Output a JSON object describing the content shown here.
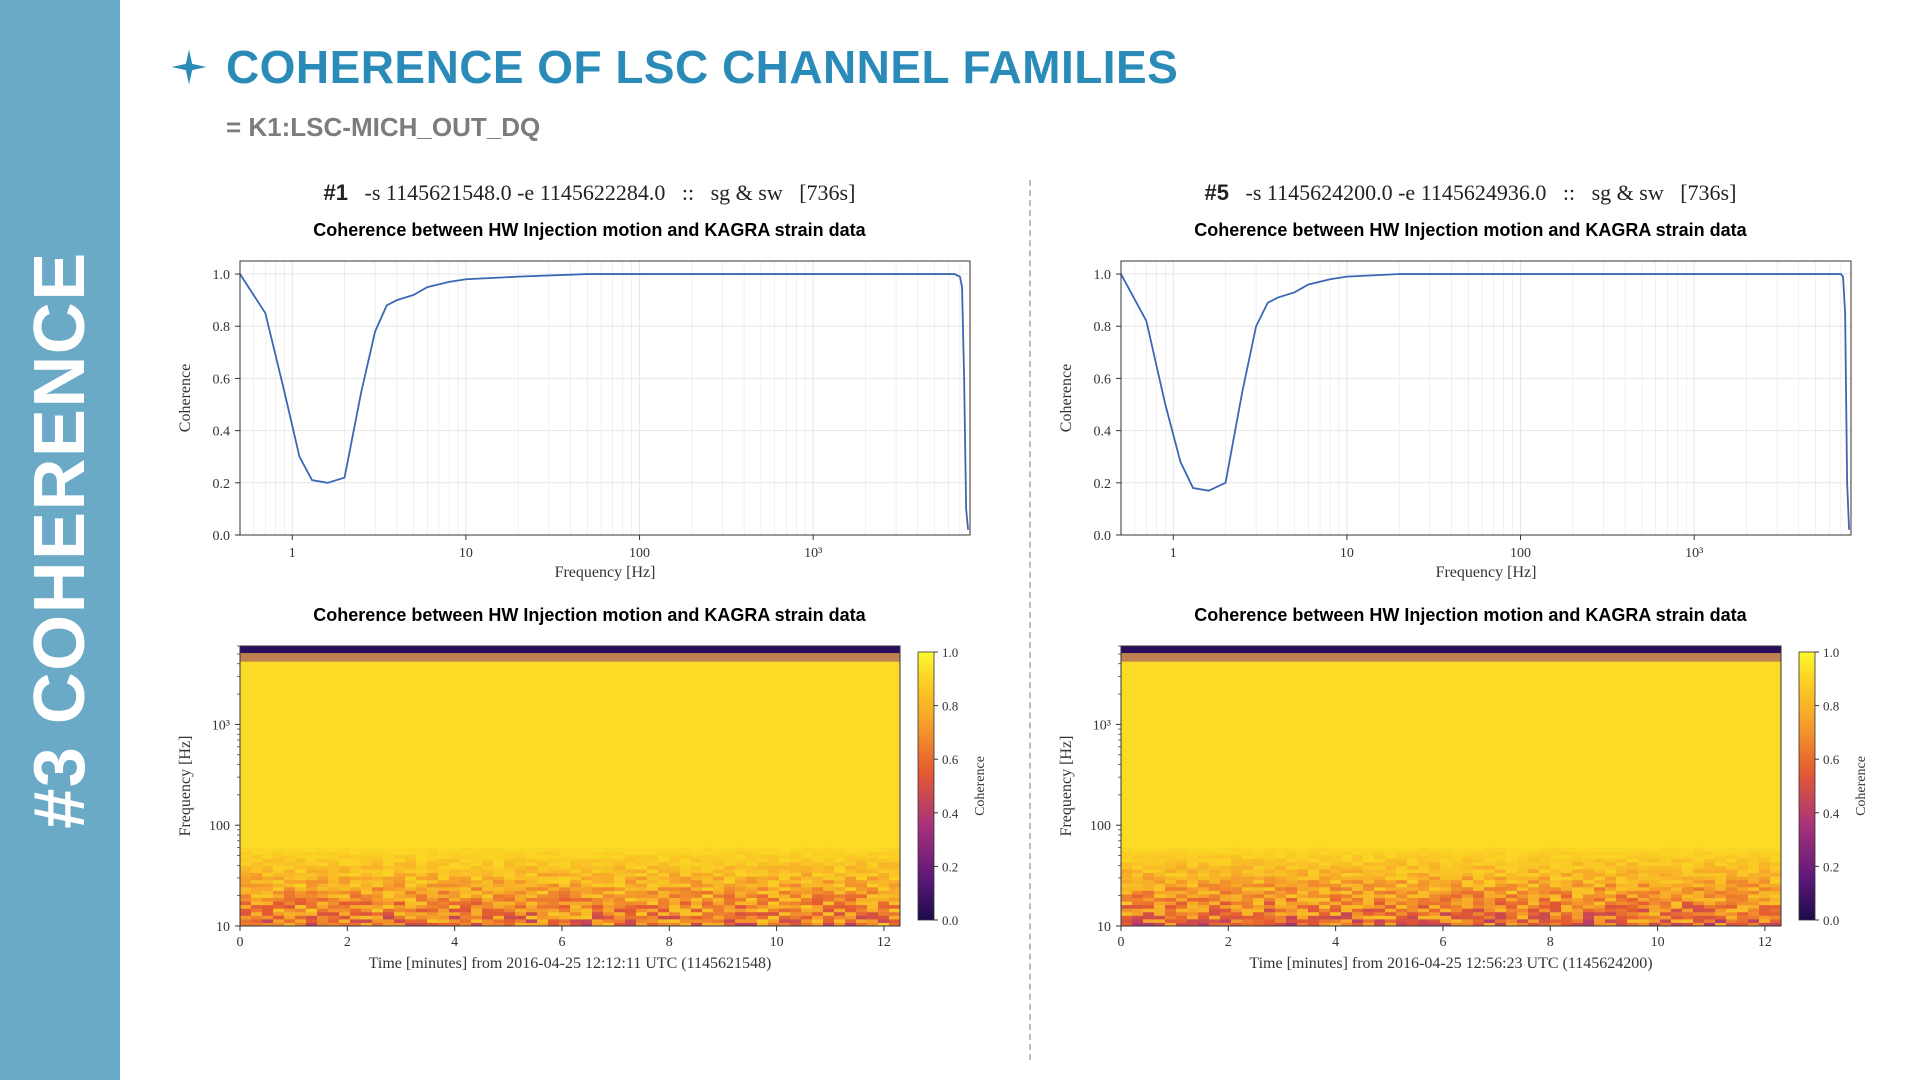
{
  "sidebar": {
    "label": "#3 COHERENCE",
    "bg": "#6aaac6",
    "fg": "#ffffff",
    "fontsize": 72
  },
  "header": {
    "title": "COHERENCE OF LSC CHANNEL FAMILIES",
    "title_color": "#2a8bb9",
    "subtitle": "= K1:LSC-MICH_OUT_DQ",
    "subtitle_color": "#7c7c7c",
    "star_color": "#2a8bb9"
  },
  "panels": [
    {
      "id": "panel-1",
      "header_num": "#1",
      "header_args": "-s 1145621548.0 -e 1145622284.0",
      "header_sep": "::",
      "header_tags": "sg & sw",
      "header_dur": "[736s]",
      "linechart": {
        "title": "Coherence between HW Injection motion and KAGRA strain data",
        "xlabel": "Frequency [Hz]",
        "ylabel": "Coherence",
        "ylim": [
          0.0,
          1.05
        ],
        "yticks": [
          0.0,
          0.2,
          0.4,
          0.6,
          0.8,
          1.0
        ],
        "xticks_major": [
          1,
          10,
          100,
          1000
        ],
        "xtick_labels": [
          "1",
          "10",
          "100",
          "10³"
        ],
        "xlim_log": [
          0.5,
          8000
        ],
        "line_color": "#3b68b5",
        "line_width": 1.8,
        "grid_color": "#e6e6e6",
        "border_color": "#333333",
        "data_x": [
          0.5,
          0.7,
          0.9,
          1.1,
          1.3,
          1.6,
          2.0,
          2.5,
          3.0,
          3.5,
          4.0,
          5.0,
          6.0,
          8.0,
          10,
          20,
          50,
          100,
          500,
          1000,
          3000,
          5000,
          6500,
          7000,
          7200,
          7400,
          7600,
          7800
        ],
        "data_y": [
          1.0,
          0.85,
          0.55,
          0.3,
          0.21,
          0.2,
          0.22,
          0.55,
          0.78,
          0.88,
          0.9,
          0.92,
          0.95,
          0.97,
          0.98,
          0.99,
          1.0,
          1.0,
          1.0,
          1.0,
          1.0,
          1.0,
          1.0,
          0.99,
          0.95,
          0.6,
          0.1,
          0.02
        ]
      },
      "spectrogram": {
        "title": "Coherence between HW Injection motion and KAGRA strain data",
        "xlabel": "Time [minutes] from 2016-04-25 12:12:11 UTC (1145621548)",
        "ylabel": "Frequency [Hz]",
        "cbar_label": "Coherence",
        "xlim": [
          0,
          12.3
        ],
        "xticks": [
          0,
          2,
          4,
          6,
          8,
          10,
          12
        ],
        "yticks_log": [
          10,
          100,
          1000
        ],
        "ytick_labels": [
          "10",
          "100",
          "10³"
        ],
        "ylim_log": [
          10,
          6000
        ],
        "cbar_ticks": [
          0.0,
          0.2,
          0.4,
          0.6,
          0.8,
          1.0
        ],
        "cmap_stops": [
          {
            "v": 0.0,
            "c": "#1a0b4a"
          },
          {
            "v": 0.15,
            "c": "#5b1777"
          },
          {
            "v": 0.35,
            "c": "#a6327d"
          },
          {
            "v": 0.55,
            "c": "#e45a32"
          },
          {
            "v": 0.75,
            "c": "#f7a529"
          },
          {
            "v": 0.9,
            "c": "#fbd324"
          },
          {
            "v": 1.0,
            "c": "#fcf930"
          }
        ],
        "top_band_color": "#2a0e5e",
        "field_value": 0.92,
        "low_value": 0.63,
        "noise_seed": 11
      }
    },
    {
      "id": "panel-5",
      "header_num": "#5",
      "header_args": "-s 1145624200.0 -e 1145624936.0",
      "header_sep": "::",
      "header_tags": "sg & sw",
      "header_dur": "[736s]",
      "linechart": {
        "title": "Coherence between HW Injection motion and KAGRA strain data",
        "xlabel": "Frequency [Hz]",
        "ylabel": "Coherence",
        "ylim": [
          0.0,
          1.05
        ],
        "yticks": [
          0.0,
          0.2,
          0.4,
          0.6,
          0.8,
          1.0
        ],
        "xticks_major": [
          1,
          10,
          100,
          1000
        ],
        "xtick_labels": [
          "1",
          "10",
          "100",
          "10³"
        ],
        "xlim_log": [
          0.5,
          8000
        ],
        "line_color": "#3b68b5",
        "line_width": 1.8,
        "grid_color": "#e6e6e6",
        "border_color": "#333333",
        "data_x": [
          0.5,
          0.7,
          0.9,
          1.1,
          1.3,
          1.6,
          2.0,
          2.5,
          3.0,
          3.5,
          4.0,
          5.0,
          6.0,
          8.0,
          10,
          20,
          50,
          100,
          500,
          1000,
          3000,
          5000,
          6500,
          7000,
          7200,
          7400,
          7600,
          7800
        ],
        "data_y": [
          1.0,
          0.82,
          0.5,
          0.28,
          0.18,
          0.17,
          0.2,
          0.55,
          0.8,
          0.89,
          0.91,
          0.93,
          0.96,
          0.98,
          0.99,
          1.0,
          1.0,
          1.0,
          1.0,
          1.0,
          1.0,
          1.0,
          1.0,
          1.0,
          0.99,
          0.85,
          0.2,
          0.02
        ]
      },
      "spectrogram": {
        "title": "Coherence between HW Injection motion and KAGRA strain data",
        "xlabel": "Time [minutes] from 2016-04-25 12:56:23 UTC (1145624200)",
        "ylabel": "Frequency [Hz]",
        "cbar_label": "Coherence",
        "xlim": [
          0,
          12.3
        ],
        "xticks": [
          0,
          2,
          4,
          6,
          8,
          10,
          12
        ],
        "yticks_log": [
          10,
          100,
          1000
        ],
        "ytick_labels": [
          "10",
          "100",
          "10³"
        ],
        "ylim_log": [
          10,
          6000
        ],
        "cbar_ticks": [
          0.0,
          0.2,
          0.4,
          0.6,
          0.8,
          1.0
        ],
        "cmap_stops": [
          {
            "v": 0.0,
            "c": "#1a0b4a"
          },
          {
            "v": 0.15,
            "c": "#5b1777"
          },
          {
            "v": 0.35,
            "c": "#a6327d"
          },
          {
            "v": 0.55,
            "c": "#e45a32"
          },
          {
            "v": 0.75,
            "c": "#f7a529"
          },
          {
            "v": 0.9,
            "c": "#fbd324"
          },
          {
            "v": 1.0,
            "c": "#fcf930"
          }
        ],
        "top_band_color": "#2a0e5e",
        "field_value": 0.92,
        "low_value": 0.6,
        "noise_seed": 27
      }
    }
  ]
}
